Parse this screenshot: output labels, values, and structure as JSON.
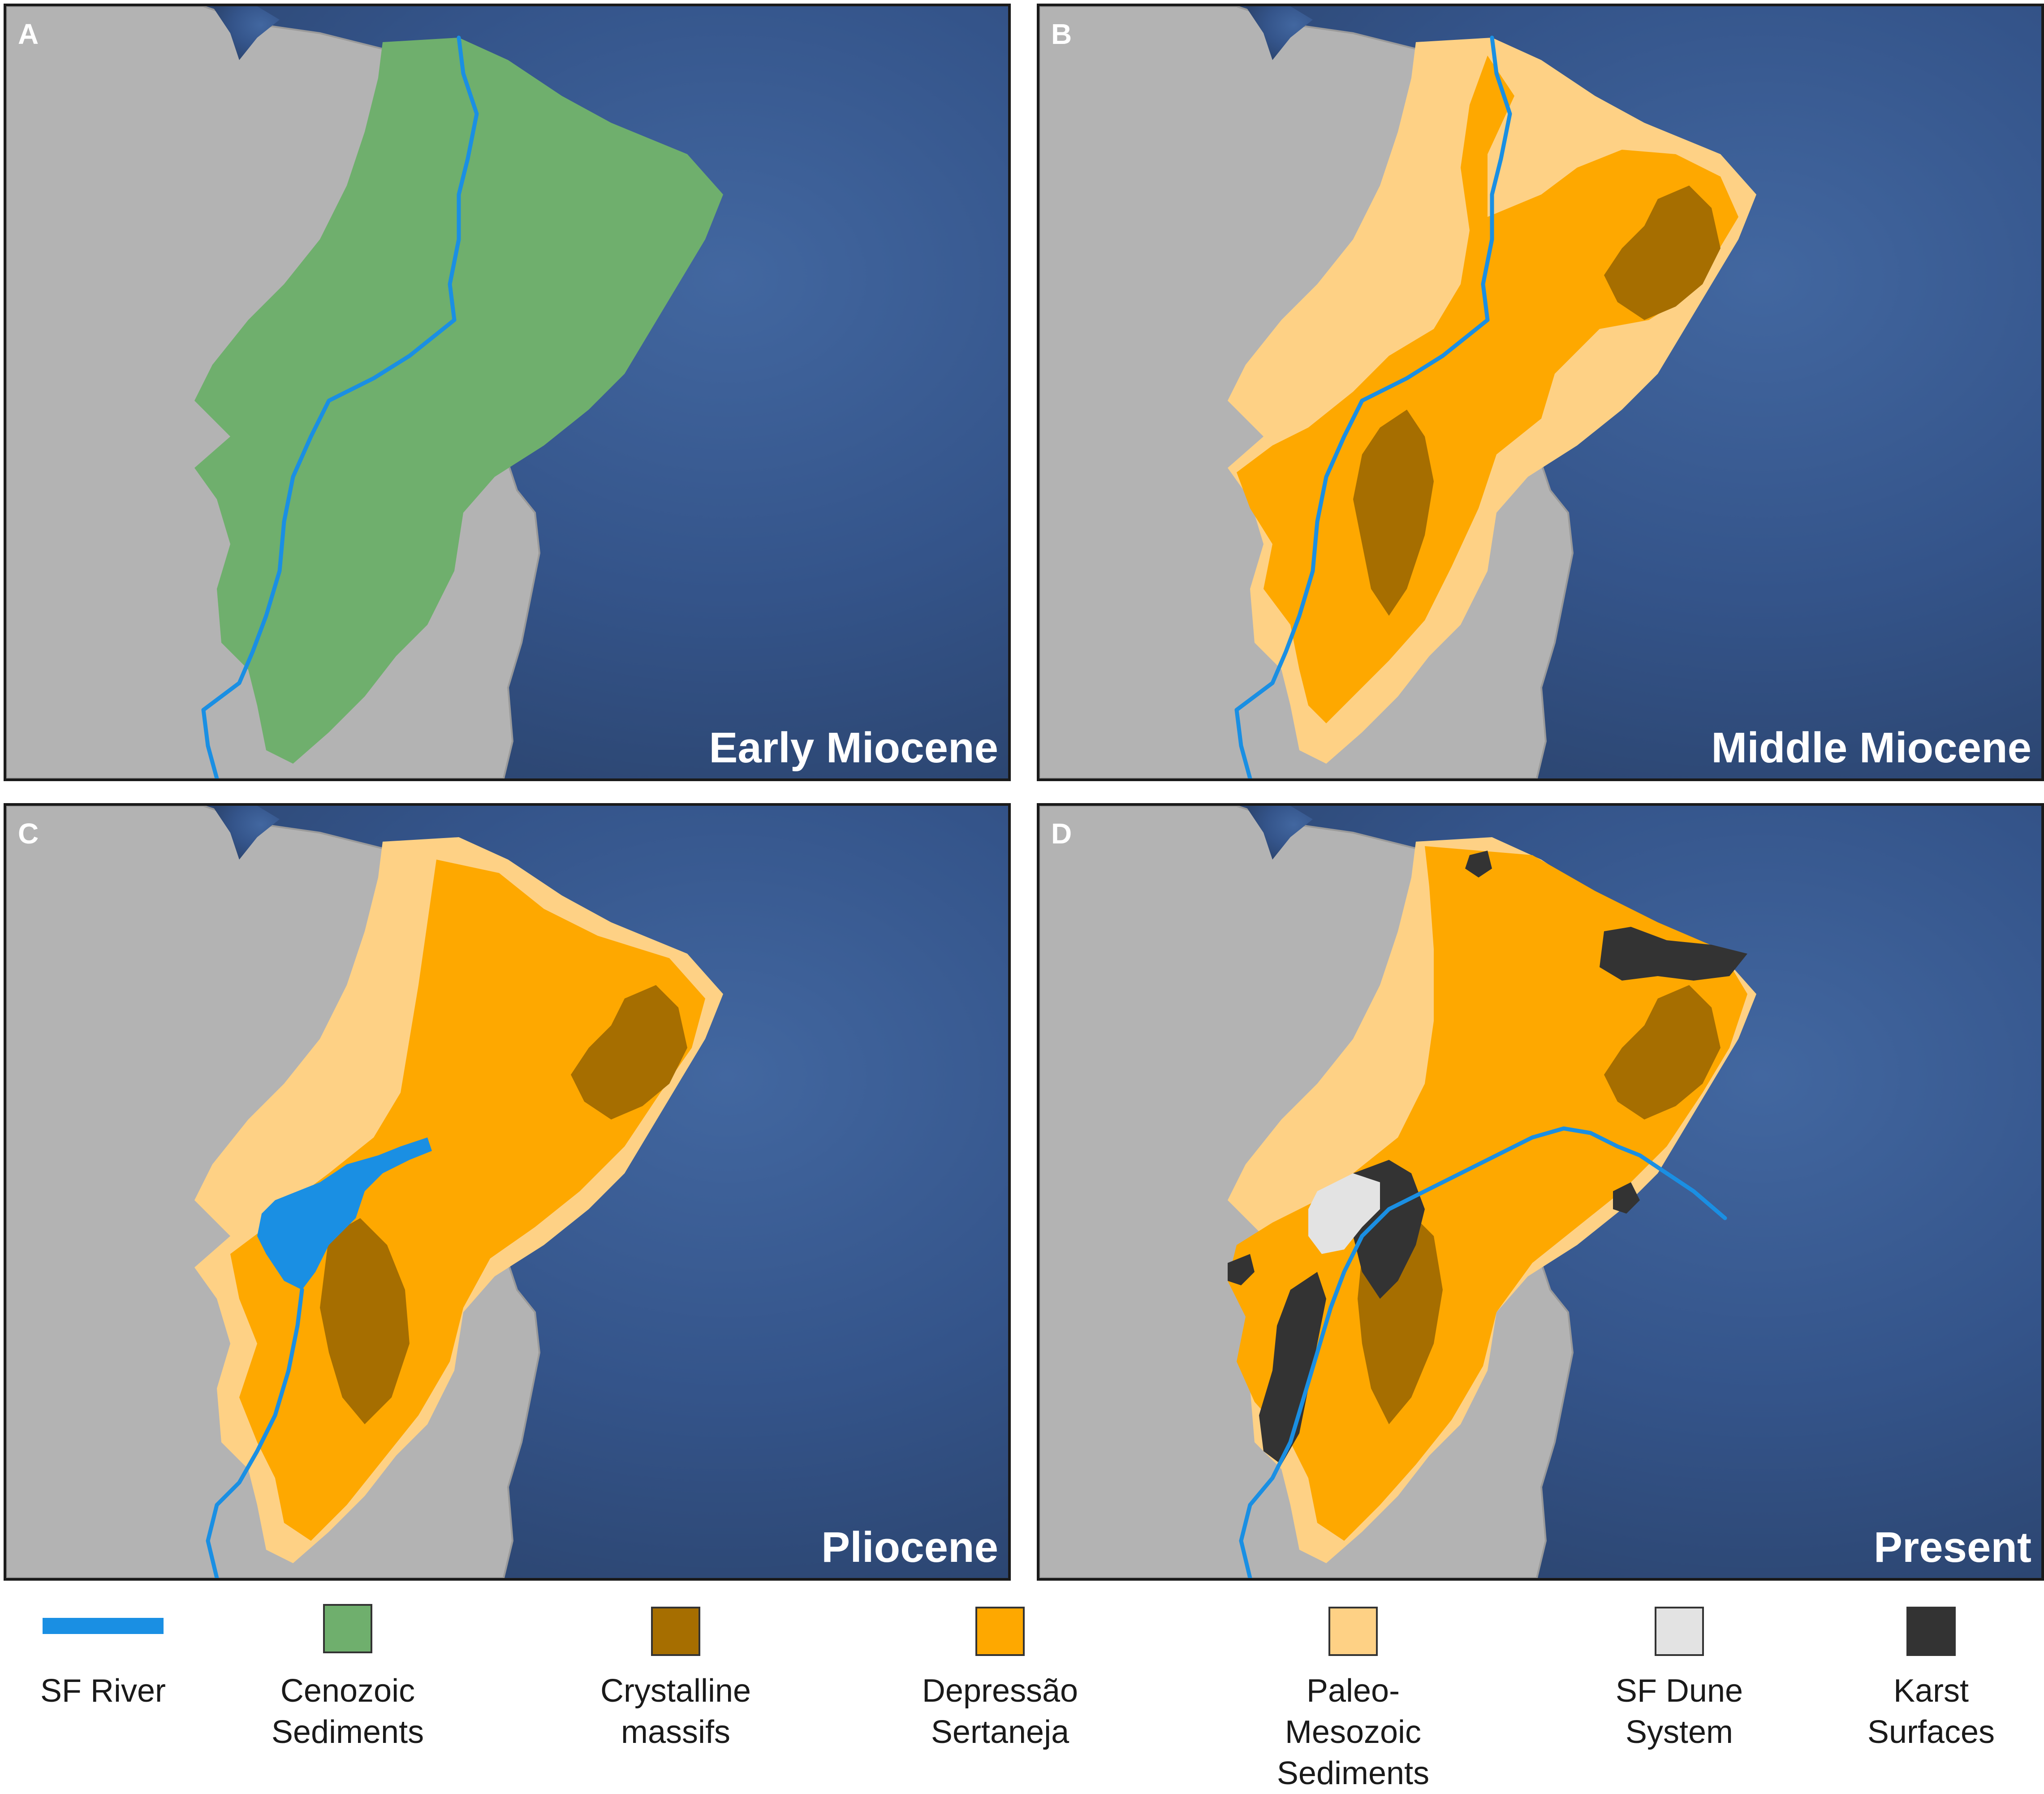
{
  "colors": {
    "land": "#b3b3b3",
    "ocean_deep": "#2f4b79",
    "ocean_light": "#3f5f95",
    "sf_river": "#1a8fe3",
    "cenozoic_sediments": "#6faf6d",
    "crystalline_massifs": "#a66e00",
    "depressao_sertaneja": "#fea800",
    "paleo_mesozoic_sediments": "#fed185",
    "sf_dune_system": "#e3e3e3",
    "karst_surfaces": "#333333"
  },
  "panels": [
    {
      "letter": "A",
      "title": "Early Miocene"
    },
    {
      "letter": "B",
      "title": "Middle Miocene"
    },
    {
      "letter": "C",
      "title": "Pliocene"
    },
    {
      "letter": "D",
      "title": "Present"
    }
  ],
  "legend": {
    "items": [
      {
        "icon": "sf-river-line",
        "color": "#1a8fe3",
        "line1": "SF River",
        "line2": ""
      },
      {
        "icon": "cenozoic-swatch",
        "color": "#6faf6d",
        "line1": "Cenozoic",
        "line2": "Sediments"
      },
      {
        "icon": "crystalline-swatch",
        "color": "#a66e00",
        "line1": "Crystalline",
        "line2": "massifs"
      },
      {
        "icon": "depressao-swatch",
        "color": "#fea800",
        "line1": "Depressão",
        "line2": "Sertaneja"
      },
      {
        "icon": "paleo-swatch",
        "color": "#fed185",
        "line1": "Paleo-Mesozoic",
        "line2": "Sediments"
      },
      {
        "icon": "dune-swatch",
        "color": "#e3e3e3",
        "line1": "SF Dune",
        "line2": "System"
      },
      {
        "icon": "karst-swatch",
        "color": "#333333",
        "line1": "Karst",
        "line2": "Surfaces"
      }
    ]
  }
}
